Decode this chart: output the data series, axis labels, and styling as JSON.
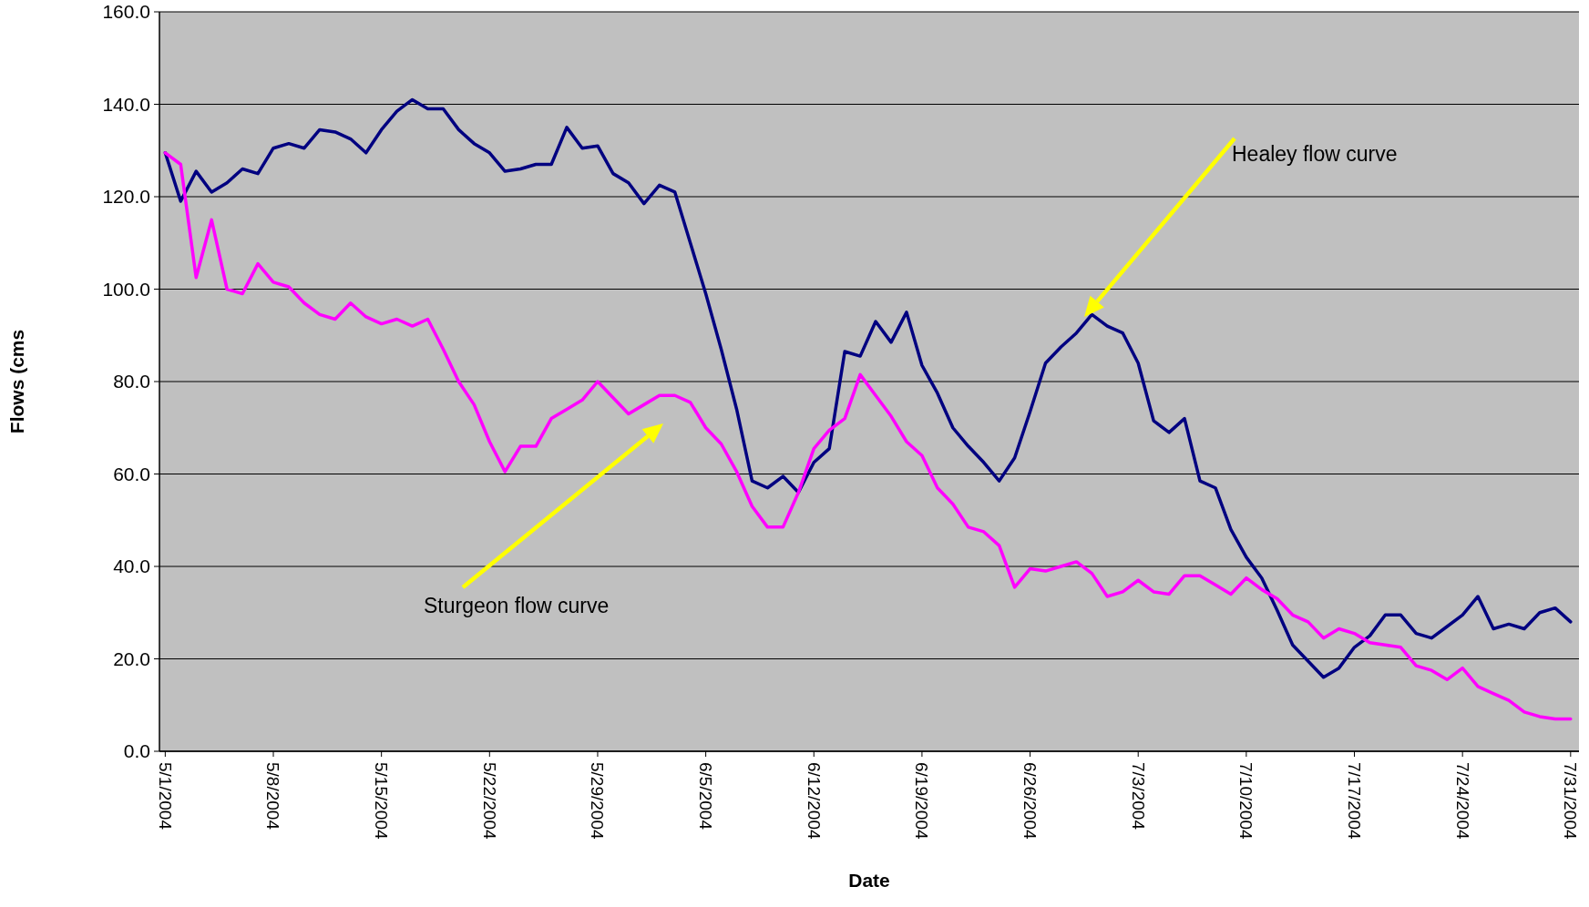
{
  "chart_data": {
    "type": "line",
    "xlabel": "Date",
    "ylabel": "Flows (cms",
    "xlim": [
      "2004-04-30T15:00",
      "2004-07-31T13:00"
    ],
    "xticks": [
      {
        "value": "2004-05-01",
        "label": "5/1/2004"
      },
      {
        "value": "2004-05-08",
        "label": "5/8/2004"
      },
      {
        "value": "2004-05-15",
        "label": "5/15/2004"
      },
      {
        "value": "2004-05-22",
        "label": "5/22/2004"
      },
      {
        "value": "2004-05-29",
        "label": "5/29/2004"
      },
      {
        "value": "2004-06-05",
        "label": "6/5/2004"
      },
      {
        "value": "2004-06-12",
        "label": "6/12/2004"
      },
      {
        "value": "2004-06-19",
        "label": "6/19/2004"
      },
      {
        "value": "2004-06-26",
        "label": "6/26/2004"
      },
      {
        "value": "2004-07-03",
        "label": "7/3/2004"
      },
      {
        "value": "2004-07-10",
        "label": "7/10/2004"
      },
      {
        "value": "2004-07-17",
        "label": "7/17/2004"
      },
      {
        "value": "2004-07-24",
        "label": "7/24/2004"
      },
      {
        "value": "2004-07-31",
        "label": "7/31/2004"
      }
    ],
    "ylim": [
      0,
      160
    ],
    "yticks": [
      {
        "value": 0,
        "label": "0.0"
      },
      {
        "value": 20,
        "label": "20.0"
      },
      {
        "value": 40,
        "label": "40.0"
      },
      {
        "value": 60,
        "label": "60.0"
      },
      {
        "value": 80,
        "label": "80.0"
      },
      {
        "value": 100,
        "label": "100.0"
      },
      {
        "value": 120,
        "label": "120.0"
      },
      {
        "value": 140,
        "label": "140.0"
      },
      {
        "value": 160,
        "label": "160.0"
      }
    ],
    "grid": "y",
    "marker": "none",
    "line_style": "solid",
    "x": [
      "2004-05-01",
      "2004-05-02",
      "2004-05-03",
      "2004-05-04",
      "2004-05-05",
      "2004-05-06",
      "2004-05-07",
      "2004-05-08",
      "2004-05-09",
      "2004-05-10",
      "2004-05-11",
      "2004-05-12",
      "2004-05-13",
      "2004-05-14",
      "2004-05-15",
      "2004-05-16",
      "2004-05-17",
      "2004-05-18",
      "2004-05-19",
      "2004-05-20",
      "2004-05-21",
      "2004-05-22",
      "2004-05-23",
      "2004-05-24",
      "2004-05-25",
      "2004-05-26",
      "2004-05-27",
      "2004-05-28",
      "2004-05-29",
      "2004-05-30",
      "2004-05-31",
      "2004-06-01",
      "2004-06-02",
      "2004-06-03",
      "2004-06-04",
      "2004-06-05",
      "2004-06-06",
      "2004-06-07",
      "2004-06-08",
      "2004-06-09",
      "2004-06-10",
      "2004-06-11",
      "2004-06-12",
      "2004-06-13",
      "2004-06-14",
      "2004-06-15",
      "2004-06-16",
      "2004-06-17",
      "2004-06-18",
      "2004-06-19",
      "2004-06-20",
      "2004-06-21",
      "2004-06-22",
      "2004-06-23",
      "2004-06-24",
      "2004-06-25",
      "2004-06-26",
      "2004-06-27",
      "2004-06-28",
      "2004-06-29",
      "2004-06-30",
      "2004-07-01",
      "2004-07-02",
      "2004-07-03",
      "2004-07-04",
      "2004-07-05",
      "2004-07-06",
      "2004-07-07",
      "2004-07-08",
      "2004-07-09",
      "2004-07-10",
      "2004-07-11",
      "2004-07-12",
      "2004-07-13",
      "2004-07-14",
      "2004-07-15",
      "2004-07-16",
      "2004-07-17",
      "2004-07-18",
      "2004-07-19",
      "2004-07-20",
      "2004-07-21",
      "2004-07-22",
      "2004-07-23",
      "2004-07-24",
      "2004-07-25",
      "2004-07-26",
      "2004-07-27",
      "2004-07-28",
      "2004-07-29",
      "2004-07-30",
      "2004-07-31"
    ],
    "annotations": [
      "Healey flow curve",
      "Sturgeon flow curve"
    ],
    "series": [
      {
        "color": "#000080",
        "values": [
          129.5,
          119,
          125.5,
          121,
          123,
          126,
          125,
          130.5,
          131.5,
          130.5,
          134.5,
          134,
          132.5,
          129.5,
          134.5,
          138.5,
          141,
          139,
          139,
          134.5,
          131.5,
          129.5,
          125.5,
          126,
          127,
          127,
          135,
          130.5,
          131,
          125,
          123,
          118.5,
          122.5,
          121,
          110,
          99,
          87,
          74,
          58.5,
          57,
          59.5,
          56,
          62.5,
          65.5,
          86.5,
          85.5,
          93,
          88.5,
          95,
          83.5,
          77.5,
          70,
          66,
          62.5,
          58.5,
          63.5,
          73.5,
          84,
          87.5,
          90.5,
          94.5,
          92,
          90.5,
          84,
          71.5,
          69,
          72,
          58.5,
          57,
          48,
          42,
          37.5,
          30.5,
          23,
          19.5,
          16,
          18,
          22.5,
          25,
          29.5,
          29.5,
          25.5,
          24.5,
          27,
          29.5,
          33.5,
          26.5,
          27.5,
          26.5,
          30,
          31,
          28
        ]
      },
      {
        "color": "#ff00ff",
        "values": [
          129.5,
          127,
          102.5,
          115,
          100,
          99,
          105.5,
          101.5,
          100.5,
          97,
          94.5,
          93.5,
          97,
          94,
          92.5,
          93.5,
          92,
          93.5,
          87,
          80,
          75,
          67,
          60.5,
          66,
          66,
          72,
          74,
          76,
          80,
          76.5,
          73,
          75,
          77,
          77,
          75.5,
          70,
          66.5,
          60.5,
          53,
          48.5,
          48.5,
          56,
          65.5,
          69.5,
          72,
          81.5,
          77,
          72.5,
          67,
          64,
          57,
          53.5,
          48.5,
          47.5,
          44.5,
          35.5,
          39.5,
          39,
          40,
          41,
          38.5,
          33.5,
          34.5,
          37,
          34.5,
          34,
          38,
          38,
          36,
          34,
          37.5,
          35,
          33,
          29.5,
          28,
          24.5,
          26.5,
          25.5,
          23.5,
          23,
          22.5,
          18.5,
          17.5,
          15.5,
          18,
          14,
          12.5,
          11,
          8.5,
          7.5,
          7,
          7
        ]
      }
    ]
  }
}
